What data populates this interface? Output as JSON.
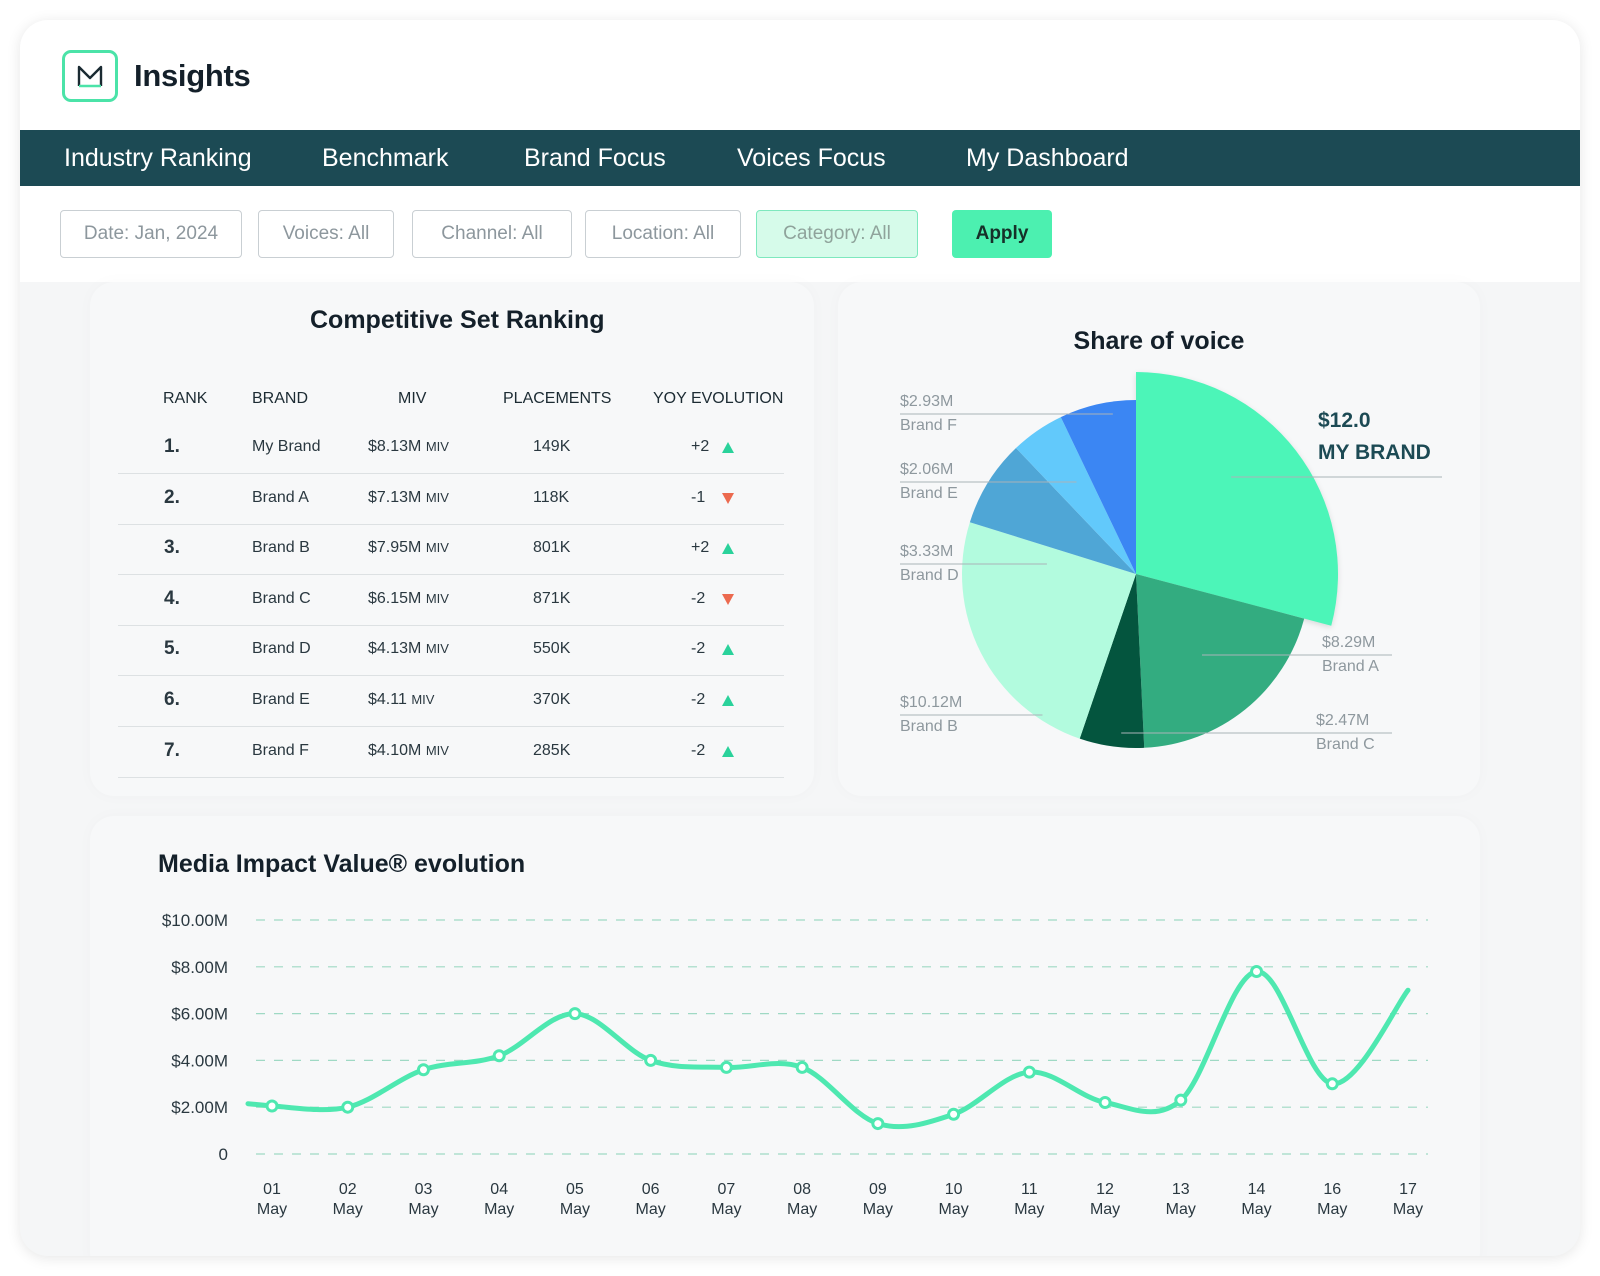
{
  "app": {
    "title": "Insights",
    "logo_icon": "m-logo-icon"
  },
  "nav": {
    "tabs": [
      {
        "label": "Industry Ranking"
      },
      {
        "label": "Benchmark",
        "active": true
      },
      {
        "label": "Brand Focus"
      },
      {
        "label": "Voices Focus"
      },
      {
        "label": "My Dashboard"
      }
    ]
  },
  "filters": {
    "date": "Date: Jan, 2024",
    "voices": "Voices: All",
    "channel": "Channel: All",
    "location": "Location: All",
    "category": "Category: All",
    "apply": "Apply"
  },
  "ranking": {
    "title": "Competitive Set Ranking",
    "columns": [
      "RANK",
      "BRAND",
      "MIV",
      "PLACEMENTS",
      "YOY EVOLUTION"
    ],
    "rows": [
      {
        "rank": "1.",
        "brand": "My Brand",
        "miv": "$8.13M",
        "miv_unit": "MIV",
        "placements": "149K",
        "yoy": "+2",
        "trend": "up"
      },
      {
        "rank": "2.",
        "brand": "Brand A",
        "miv": "$7.13M",
        "miv_unit": "MIV",
        "placements": "118K",
        "yoy": "-1",
        "trend": "down"
      },
      {
        "rank": "3.",
        "brand": "Brand B",
        "miv": "$7.95M",
        "miv_unit": "MIV",
        "placements": "801K",
        "yoy": "+2",
        "trend": "up"
      },
      {
        "rank": "4.",
        "brand": "Brand C",
        "miv": "$6.15M",
        "miv_unit": "MIV",
        "placements": "871K",
        "yoy": "-2",
        "trend": "down"
      },
      {
        "rank": "5.",
        "brand": "Brand D",
        "miv": "$4.13M",
        "miv_unit": "MIV",
        "placements": "550K",
        "yoy": "-2",
        "trend": "up"
      },
      {
        "rank": "6.",
        "brand": "Brand E",
        "miv": "$4.11",
        "miv_unit": "MIV",
        "placements": "370K",
        "yoy": "-2",
        "trend": "up"
      },
      {
        "rank": "7.",
        "brand": "Brand F",
        "miv": "$4.10M",
        "miv_unit": "MIV",
        "placements": "285K",
        "yoy": "-2",
        "trend": "up"
      }
    ],
    "colors": {
      "up": "#2ad29b",
      "down": "#ec6a4f"
    }
  },
  "chart_data": [
    {
      "type": "pie",
      "title": "Share of voice",
      "slices": [
        {
          "label": "MY BRAND",
          "value_label": "$12.0",
          "value": 12.0,
          "color": "#4cf5b8",
          "exploded": true
        },
        {
          "label": "Brand A",
          "value_label": "$8.29M",
          "value": 8.29,
          "color": "#33ac80"
        },
        {
          "label": "Brand C",
          "value_label": "$2.47M",
          "value": 2.47,
          "color": "#04553e"
        },
        {
          "label": "Brand B",
          "value_label": "$10.12M",
          "value": 10.12,
          "color": "#b2fbde"
        },
        {
          "label": "Brand D",
          "value_label": "$3.33M",
          "value": 3.33,
          "color": "#4fa6d6"
        },
        {
          "label": "Brand E",
          "value_label": "$2.06M",
          "value": 2.06,
          "color": "#62c9fb"
        },
        {
          "label": "Brand F",
          "value_label": "$2.93M",
          "value": 2.93,
          "color": "#3b86f3"
        }
      ]
    },
    {
      "type": "line",
      "title": "Media Impact Value® evolution",
      "x": [
        "01 May",
        "02 May",
        "03 May",
        "04 May",
        "05 May",
        "06 May",
        "07 May",
        "08 May",
        "09 May",
        "10 May",
        "11 May",
        "12 May",
        "13 May",
        "14 May",
        "16 May",
        "17 May"
      ],
      "series": [
        {
          "values": [
            2.05,
            2.0,
            3.6,
            4.2,
            6.0,
            4.0,
            3.7,
            3.7,
            1.3,
            1.7,
            3.5,
            2.2,
            2.3,
            7.8,
            3.0,
            7.0
          ],
          "color": "#4ee8b0"
        }
      ],
      "yticks": [
        "0",
        "$2.00M",
        "$4.00M",
        "$6.00M",
        "$8.00M",
        "$10.00M"
      ],
      "ylim": [
        0,
        10
      ],
      "grid": true,
      "grid_style": "dashed"
    }
  ]
}
